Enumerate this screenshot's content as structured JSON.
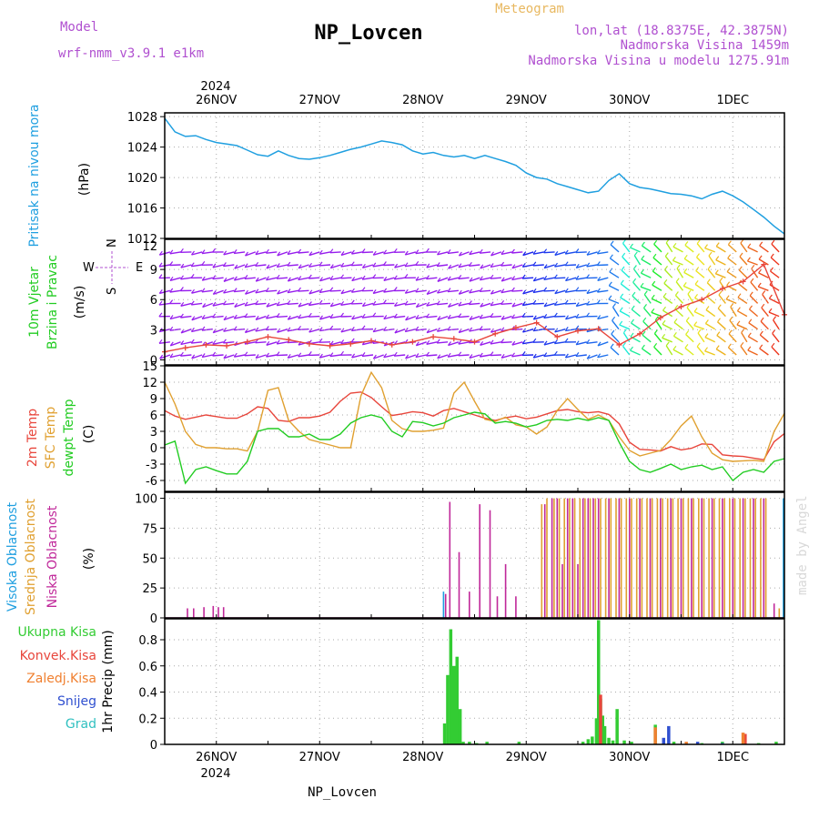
{
  "header": {
    "model_label": "Model",
    "model_name": "wrf-nmm_v3.9.1 e1km",
    "title": "NP_Lovcen",
    "meteogram_label": "Meteogram",
    "lonlat": "lon,lat (18.8375E, 42.3875N)",
    "elevation": "Nadmorska Visina 1459m",
    "model_elevation": "Nadmorska Visina u modelu 1275.91m",
    "footer_title": "NP_Lovcen",
    "watermark": "made by Angel",
    "year_top": "2024",
    "year_bottom": "2024"
  },
  "colors": {
    "pressure": "#1f9fe0",
    "temp2m": "#e8463c",
    "sfc_temp": "#e0a030",
    "dewpt": "#22cc22",
    "visoka": "#1f9fe0",
    "srednja": "#e0a030",
    "niska": "#c0289a",
    "ukupna": "#33cc33",
    "konvek": "#e8463c",
    "zaledj": "#f08030",
    "snijeg": "#3050d0",
    "grad": "#30c0c0",
    "wind_label": "#22cc22",
    "wind_dir": "#b050d0"
  },
  "chart_data": [
    {
      "type": "line",
      "ylabel": "(hPa)",
      "side_labels": [
        "Pritisak na nivou mora"
      ],
      "ylim": [
        1012,
        1028.5
      ],
      "yticks": [
        1012,
        1016,
        1020,
        1024,
        1028
      ],
      "x_dates": [
        "26NOV",
        "27NOV",
        "28NOV",
        "29NOV",
        "30NOV",
        "1DEC"
      ],
      "series": [
        {
          "color_key": "pressure",
          "x": [
            -0.5,
            -0.4,
            -0.3,
            -0.2,
            -0.1,
            0.0,
            0.1,
            0.2,
            0.3,
            0.4,
            0.5,
            0.6,
            0.7,
            0.8,
            0.9,
            1.0,
            1.1,
            1.2,
            1.3,
            1.4,
            1.5,
            1.6,
            1.7,
            1.8,
            1.9,
            2.0,
            2.1,
            2.2,
            2.3,
            2.4,
            2.5,
            2.6,
            2.7,
            2.8,
            2.9,
            3.0,
            3.1,
            3.2,
            3.3,
            3.4,
            3.5,
            3.6,
            3.7,
            3.8,
            3.9,
            4.0,
            4.1,
            4.2,
            4.3,
            4.4,
            4.5,
            4.6,
            4.7,
            4.8,
            4.9,
            5.0,
            5.1,
            5.2,
            5.3,
            5.4,
            5.5
          ],
          "y": [
            1027.8,
            1026.0,
            1025.4,
            1025.5,
            1025.0,
            1024.6,
            1024.4,
            1024.2,
            1023.6,
            1023.0,
            1022.8,
            1023.5,
            1022.9,
            1022.5,
            1022.4,
            1022.6,
            1022.9,
            1023.3,
            1023.7,
            1024.0,
            1024.4,
            1024.8,
            1024.6,
            1024.3,
            1023.5,
            1023.1,
            1023.3,
            1022.9,
            1022.7,
            1022.9,
            1022.5,
            1022.9,
            1022.5,
            1022.1,
            1021.6,
            1020.6,
            1020.0,
            1019.8,
            1019.2,
            1018.8,
            1018.4,
            1018.0,
            1018.2,
            1019.6,
            1020.5,
            1019.2,
            1018.7,
            1018.5,
            1018.2,
            1017.9,
            1017.8,
            1017.6,
            1017.2,
            1017.8,
            1018.2,
            1017.6,
            1016.8,
            1015.8,
            1014.8,
            1013.6,
            1012.6
          ]
        }
      ]
    },
    {
      "type": "line",
      "ylabel": "(m/s)",
      "side_labels": [
        "10m Vjetar",
        "Brzina i Pravac"
      ],
      "ylim": [
        -0.5,
        12
      ],
      "yticks": [
        0,
        3,
        6,
        9
      ],
      "tick_labels_extra": [
        "12"
      ],
      "wind_axis": {
        "n": "N",
        "w": "W",
        "e": "E",
        "s": "S"
      },
      "series": [
        {
          "color_key": "temp2m",
          "x": [
            -0.5,
            -0.3,
            -0.1,
            0.1,
            0.3,
            0.5,
            0.7,
            0.9,
            1.1,
            1.3,
            1.5,
            1.7,
            1.9,
            2.1,
            2.3,
            2.5,
            2.7,
            2.9,
            3.1,
            3.3,
            3.5,
            3.7,
            3.9,
            4.1,
            4.3,
            4.5,
            4.7,
            4.9,
            5.1,
            5.3,
            5.5
          ],
          "y": [
            0.8,
            1.2,
            1.5,
            1.4,
            1.8,
            2.3,
            2.0,
            1.6,
            1.4,
            1.6,
            1.9,
            1.5,
            1.8,
            2.3,
            2.1,
            1.8,
            2.6,
            3.2,
            3.7,
            2.3,
            2.9,
            3.1,
            1.5,
            2.6,
            4.2,
            5.3,
            6.0,
            7.1,
            7.8,
            9.5,
            4.5
          ]
        }
      ]
    },
    {
      "type": "line",
      "ylabel": "(C)",
      "side_labels": [
        "2m Temp",
        "SFC Temp",
        "dewpt Temp"
      ],
      "ylim": [
        -8,
        15
      ],
      "yticks": [
        -6,
        -3,
        0,
        3,
        6,
        9,
        12,
        15
      ],
      "series": [
        {
          "name": "2m Temp",
          "color_key": "temp2m",
          "x": [
            -0.5,
            -0.4,
            -0.3,
            -0.2,
            -0.1,
            0.0,
            0.1,
            0.2,
            0.3,
            0.4,
            0.5,
            0.6,
            0.7,
            0.8,
            0.9,
            1.0,
            1.1,
            1.2,
            1.3,
            1.4,
            1.5,
            1.6,
            1.7,
            1.8,
            1.9,
            2.0,
            2.1,
            2.2,
            2.3,
            2.4,
            2.5,
            2.6,
            2.7,
            2.8,
            2.9,
            3.0,
            3.1,
            3.2,
            3.3,
            3.4,
            3.5,
            3.6,
            3.7,
            3.8,
            3.9,
            4.0,
            4.1,
            4.2,
            4.3,
            4.4,
            4.5,
            4.6,
            4.7,
            4.8,
            4.9,
            5.0,
            5.1,
            5.2,
            5.3,
            5.4,
            5.5
          ],
          "y": [
            6.8,
            5.8,
            5.2,
            5.6,
            6.0,
            5.7,
            5.4,
            5.4,
            6.2,
            7.5,
            7.2,
            5.0,
            4.8,
            5.5,
            5.5,
            5.8,
            6.5,
            8.5,
            10.0,
            10.2,
            9.2,
            7.5,
            5.9,
            6.2,
            6.6,
            6.4,
            5.8,
            6.8,
            7.2,
            6.6,
            6.0,
            5.4,
            5.0,
            5.5,
            5.8,
            5.3,
            5.6,
            6.2,
            6.8,
            7.0,
            6.6,
            6.4,
            6.6,
            6.1,
            4.4,
            1.0,
            -0.3,
            -0.4,
            -0.6,
            0.2,
            -0.4,
            -0.1,
            0.7,
            0.6,
            -1.3,
            -1.5,
            -1.6,
            -1.9,
            -2.2,
            1.1,
            2.6
          ]
        },
        {
          "name": "SFC Temp",
          "color_key": "sfc_temp",
          "x": [
            -0.5,
            -0.4,
            -0.3,
            -0.2,
            -0.1,
            0.0,
            0.1,
            0.2,
            0.3,
            0.4,
            0.5,
            0.6,
            0.7,
            0.8,
            0.9,
            1.0,
            1.1,
            1.2,
            1.3,
            1.4,
            1.5,
            1.6,
            1.7,
            1.8,
            1.9,
            2.0,
            2.1,
            2.2,
            2.3,
            2.4,
            2.5,
            2.6,
            2.7,
            2.8,
            2.9,
            3.0,
            3.1,
            3.2,
            3.3,
            3.4,
            3.5,
            3.6,
            3.7,
            3.8,
            3.9,
            4.0,
            4.1,
            4.2,
            4.3,
            4.4,
            4.5,
            4.6,
            4.7,
            4.8,
            4.9,
            5.0,
            5.1,
            5.2,
            5.3,
            5.4,
            5.5
          ],
          "y": [
            12.0,
            8.0,
            3.0,
            0.6,
            0.0,
            0.0,
            -0.2,
            -0.2,
            -0.6,
            3.0,
            10.5,
            11.0,
            5.0,
            3.0,
            1.5,
            1.0,
            0.5,
            0.0,
            0.0,
            9.5,
            13.8,
            11.0,
            5.0,
            3.5,
            3.0,
            3.0,
            3.2,
            3.6,
            10.0,
            12.0,
            8.5,
            5.2,
            4.8,
            5.6,
            4.2,
            3.8,
            2.5,
            3.8,
            6.8,
            9.0,
            7.0,
            5.2,
            6.0,
            5.0,
            2.0,
            -0.5,
            -1.5,
            -1.0,
            -0.5,
            1.5,
            4.0,
            5.8,
            2.0,
            -1.0,
            -2.2,
            -2.5,
            -2.4,
            -2.3,
            -2.5,
            3.0,
            6.3
          ]
        },
        {
          "name": "dewpt Temp",
          "color_key": "dewpt",
          "x": [
            -0.5,
            -0.4,
            -0.3,
            -0.2,
            -0.1,
            0.0,
            0.1,
            0.2,
            0.3,
            0.4,
            0.5,
            0.6,
            0.7,
            0.8,
            0.9,
            1.0,
            1.1,
            1.2,
            1.3,
            1.4,
            1.5,
            1.6,
            1.7,
            1.8,
            1.9,
            2.0,
            2.1,
            2.2,
            2.3,
            2.4,
            2.5,
            2.6,
            2.7,
            2.8,
            2.9,
            3.0,
            3.1,
            3.2,
            3.3,
            3.4,
            3.5,
            3.6,
            3.7,
            3.8,
            3.9,
            4.0,
            4.1,
            4.2,
            4.3,
            4.4,
            4.5,
            4.6,
            4.7,
            4.8,
            4.9,
            5.0,
            5.1,
            5.2,
            5.3,
            5.4,
            5.5
          ],
          "y": [
            0.5,
            1.2,
            -6.5,
            -4.0,
            -3.5,
            -4.2,
            -4.8,
            -4.8,
            -2.5,
            3.0,
            3.5,
            3.5,
            2.0,
            2.0,
            2.5,
            1.5,
            1.5,
            2.5,
            4.5,
            5.5,
            6.0,
            5.5,
            3.0,
            2.0,
            4.8,
            4.6,
            4.0,
            4.5,
            5.5,
            6.0,
            6.5,
            6.2,
            4.5,
            4.8,
            4.5,
            3.8,
            4.2,
            5.0,
            5.2,
            5.0,
            5.4,
            5.0,
            5.5,
            5.0,
            1.0,
            -2.5,
            -4.0,
            -4.5,
            -3.8,
            -3.0,
            -4.0,
            -3.5,
            -3.2,
            -4.0,
            -3.5,
            -6.0,
            -4.5,
            -4.0,
            -4.5,
            -2.5,
            -2.0
          ]
        }
      ]
    },
    {
      "type": "bar",
      "ylabel": "(%)",
      "side_labels": [
        "Visoka Oblacnost",
        "Srednja Oblacnost",
        "Niska Oblacnost"
      ],
      "ylim": [
        0,
        105
      ],
      "yticks": [
        0,
        25,
        50,
        75,
        100
      ],
      "series": [
        {
          "name": "Niska Oblacnost",
          "color_key": "niska",
          "x": [
            -0.28,
            -0.22,
            -0.12,
            -0.03,
            0.02,
            0.07,
            2.22,
            2.26,
            2.35,
            2.45,
            2.55,
            2.65,
            2.72,
            2.8,
            2.9,
            3.18,
            3.25,
            3.3,
            3.35,
            3.4,
            3.45,
            3.5,
            3.55,
            3.6,
            3.65,
            3.7,
            3.8,
            3.9,
            4.0,
            4.1,
            4.2,
            4.3,
            4.4,
            4.5,
            4.6,
            4.7,
            4.8,
            4.9,
            5.0,
            5.1,
            5.2,
            5.3,
            5.4
          ],
          "y": [
            8,
            8,
            9,
            10,
            9,
            9,
            20,
            97,
            55,
            22,
            95,
            90,
            18,
            45,
            18,
            95,
            100,
            100,
            45,
            100,
            100,
            45,
            100,
            100,
            100,
            100,
            100,
            100,
            100,
            100,
            100,
            100,
            100,
            100,
            100,
            100,
            100,
            100,
            100,
            100,
            100,
            100,
            12
          ]
        },
        {
          "name": "Srednja Oblacnost",
          "color_key": "srednja",
          "x": [
            3.15,
            3.2,
            3.27,
            3.32,
            3.37,
            3.42,
            3.47,
            3.52,
            3.57,
            3.62,
            3.67,
            3.72,
            3.77,
            3.82,
            3.87,
            3.92,
            3.97,
            4.02,
            4.07,
            4.12,
            4.17,
            4.22,
            4.27,
            4.32,
            4.37,
            4.42,
            4.47,
            4.52,
            4.57,
            4.62,
            4.67,
            4.72,
            4.77,
            4.82,
            4.87,
            4.92,
            4.97,
            5.02,
            5.07,
            5.12,
            5.17,
            5.22,
            5.27,
            5.32,
            5.45
          ],
          "y": [
            95,
            100,
            100,
            100,
            100,
            100,
            100,
            100,
            100,
            100,
            100,
            100,
            100,
            100,
            100,
            100,
            100,
            100,
            100,
            100,
            100,
            100,
            100,
            100,
            100,
            100,
            100,
            100,
            100,
            100,
            100,
            100,
            100,
            100,
            100,
            100,
            100,
            100,
            100,
            100,
            100,
            100,
            100,
            100,
            8
          ]
        },
        {
          "name": "Visoka Oblacnost",
          "color_key": "visoka",
          "x": [
            2.2,
            5.49
          ],
          "y": [
            22,
            100
          ]
        }
      ]
    },
    {
      "type": "bar",
      "ylabel": "1hr Precip (mm)",
      "side_labels": [
        "Ukupna Kisa",
        "Konvek.Kisa",
        "Zaledj.Kisa",
        "Snijeg",
        "Grad"
      ],
      "ylim": [
        0,
        0.96
      ],
      "yticks": [
        0,
        0.2,
        0.4,
        0.6,
        0.8
      ],
      "x_dates": [
        "26NOV",
        "27NOV",
        "28NOV",
        "29NOV",
        "30NOV",
        "1DEC"
      ],
      "series": [
        {
          "name": "Ukupna Kisa",
          "color_key": "ukupna",
          "x": [
            2.21,
            2.24,
            2.27,
            2.3,
            2.33,
            2.36,
            2.39,
            2.45,
            2.52,
            2.62,
            2.93,
            3.55,
            3.6,
            3.64,
            3.68,
            3.7,
            3.72,
            3.74,
            3.76,
            3.8,
            3.84,
            3.88,
            3.95,
            4.02,
            4.25,
            4.43,
            4.7,
            4.9,
            5.25,
            5.42
          ],
          "y": [
            0.16,
            0.53,
            0.88,
            0.6,
            0.67,
            0.27,
            0.02,
            0.02,
            0.01,
            0.02,
            0.02,
            0.02,
            0.04,
            0.06,
            0.2,
            0.95,
            0.35,
            0.22,
            0.14,
            0.05,
            0.03,
            0.27,
            0.03,
            0.02,
            0.15,
            0.02,
            0.01,
            0.02,
            0.01,
            0.02
          ]
        },
        {
          "name": "Konvek.Kisa",
          "color_key": "konvek",
          "x": [
            3.72,
            5.12
          ],
          "y": [
            0.38,
            0.08
          ]
        },
        {
          "name": "Zaledj.Kisa",
          "color_key": "zaledj",
          "x": [
            4.25,
            4.55,
            5.1
          ],
          "y": [
            0.13,
            0.02,
            0.09
          ]
        },
        {
          "name": "Snijeg",
          "color_key": "snijeg",
          "x": [
            4.33,
            4.38,
            4.66,
            4.9
          ],
          "y": [
            0.05,
            0.14,
            0.02,
            0.01
          ]
        },
        {
          "name": "Grad",
          "color_key": "grad",
          "x": [],
          "y": []
        }
      ]
    }
  ]
}
